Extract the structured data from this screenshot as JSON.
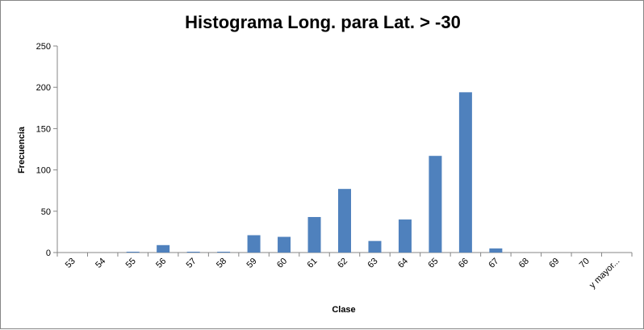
{
  "chart_data": {
    "type": "bar",
    "title": "Histograma Long. para Lat. > -30",
    "xlabel": "Clase",
    "ylabel": "Frecuencia",
    "categories": [
      "53",
      "54",
      "55",
      "56",
      "57",
      "58",
      "59",
      "60",
      "61",
      "62",
      "63",
      "64",
      "65",
      "66",
      "67",
      "68",
      "69",
      "70",
      "y mayor..."
    ],
    "values": [
      0,
      0,
      1,
      9,
      1,
      1,
      21,
      19,
      43,
      77,
      14,
      40,
      117,
      194,
      5,
      0,
      0,
      0,
      0
    ],
    "ylim": [
      0,
      250
    ],
    "yticks": [
      0,
      50,
      100,
      150,
      200,
      250
    ],
    "grid": false,
    "legend": "none",
    "colors": {
      "bar": "#4F81BD",
      "axis": "#868686",
      "frame": "#868686"
    }
  }
}
